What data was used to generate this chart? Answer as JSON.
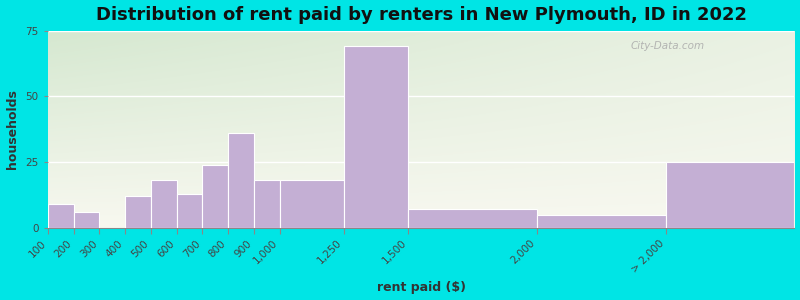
{
  "title": "Distribution of rent paid by renters in New Plymouth, ID in 2022",
  "xlabel": "rent paid ($)",
  "ylabel": "households",
  "bar_color": "#c4afd4",
  "background_outer": "#00e5e5",
  "background_top_left": "#d8ead8",
  "background_top_right": "#f0f4f0",
  "background_bottom": "#f8f8f0",
  "tick_labels": [
    "100",
    "200",
    "300",
    "400",
    "500",
    "600",
    "700",
    "800",
    "900",
    "1,000",
    "1,250",
    "1,500",
    "2,000",
    "> 2,000"
  ],
  "bin_edges_numeric": [
    100,
    200,
    300,
    400,
    500,
    600,
    700,
    800,
    900,
    1000,
    1250,
    1500,
    2000,
    2500,
    3000
  ],
  "values": [
    9,
    6,
    0,
    12,
    18,
    13,
    24,
    36,
    18,
    18,
    69,
    7,
    5,
    25
  ],
  "ylim": [
    0,
    75
  ],
  "yticks": [
    0,
    25,
    50,
    75
  ],
  "title_fontsize": 13,
  "axis_label_fontsize": 9,
  "tick_fontsize": 7.5
}
